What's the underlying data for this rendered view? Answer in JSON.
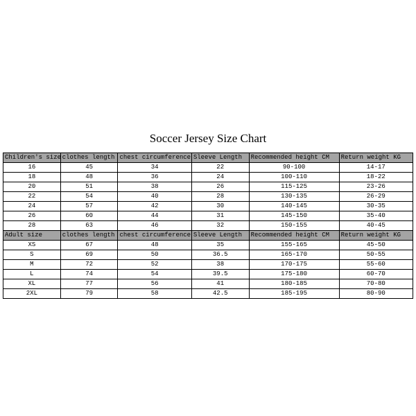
{
  "title": "Soccer Jersey Size Chart",
  "colors": {
    "header_bg": "#a4a4a4",
    "border": "#000000",
    "text": "#000000",
    "bg": "#ffffff"
  },
  "children_table": {
    "headers": [
      "Children's size",
      "clothes length",
      "chest circumference",
      "Sleeve Length",
      "Recommended height CM",
      "Return weight KG"
    ],
    "rows": [
      [
        "16",
        "45",
        "34",
        "22",
        "90-100",
        "14-17"
      ],
      [
        "18",
        "48",
        "36",
        "24",
        "100-110",
        "18-22"
      ],
      [
        "20",
        "51",
        "38",
        "26",
        "115-125",
        "23-26"
      ],
      [
        "22",
        "54",
        "40",
        "28",
        "130-135",
        "26-29"
      ],
      [
        "24",
        "57",
        "42",
        "30",
        "140-145",
        "30-35"
      ],
      [
        "26",
        "60",
        "44",
        "31",
        "145-150",
        "35-40"
      ],
      [
        "28",
        "63",
        "46",
        "32",
        "150-155",
        "40-45"
      ]
    ]
  },
  "adult_table": {
    "headers": [
      "Adult size",
      "clothes length",
      "chest circumference",
      "Sleeve Length",
      "Recommended height CM",
      "Return weight KG"
    ],
    "rows": [
      [
        "XS",
        "67",
        "48",
        "35",
        "155-165",
        "45-50"
      ],
      [
        "S",
        "69",
        "50",
        "36.5",
        "165-170",
        "50-55"
      ],
      [
        "M",
        "72",
        "52",
        "38",
        "170-175",
        "55-60"
      ],
      [
        "L",
        "74",
        "54",
        "39.5",
        "175-180",
        "60-70"
      ],
      [
        "XL",
        "77",
        "56",
        "41",
        "180-185",
        "70-80"
      ],
      [
        "2XL",
        "79",
        "58",
        "42.5",
        "185-195",
        "80-90"
      ]
    ]
  }
}
